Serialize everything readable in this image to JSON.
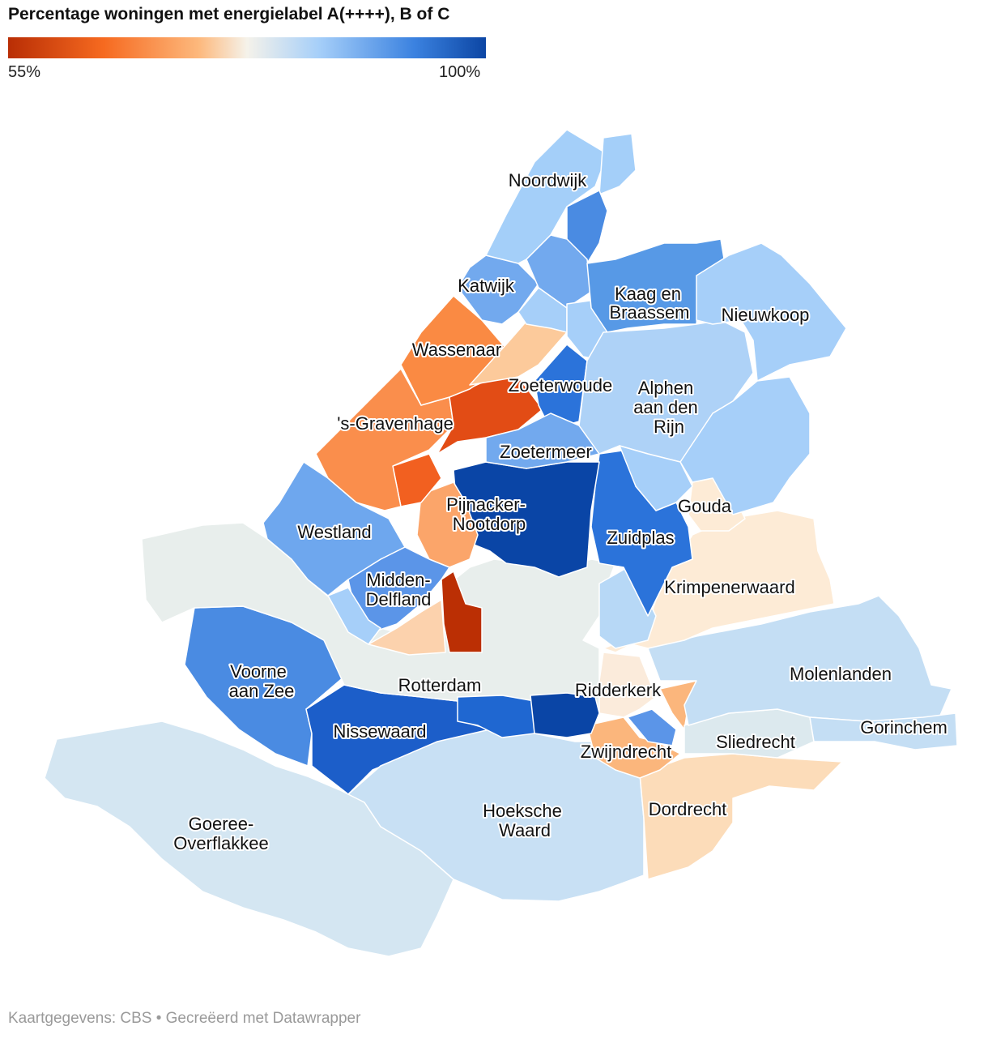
{
  "title": "Percentage woningen met energielabel A(++++), B of C",
  "legend": {
    "min_label": "55%",
    "max_label": "100%",
    "colors": [
      "#b92e05",
      "#f66a20",
      "#fdb97d",
      "#f5f2ea",
      "#a6cff9",
      "#3b82e0",
      "#0c46a4"
    ]
  },
  "footer": "Kaartgegevens: CBS • Gecreëerd met Datawrapper",
  "map": {
    "labels": {
      "noordwijk": "Noordwijk",
      "katwijk": "Katwijk",
      "kaag1": "Kaag en",
      "kaag2": "Braassem",
      "nieuwkoop": "Nieuwkoop",
      "wassenaar": "Wassenaar",
      "zoeterwoude": "Zoeterwoude",
      "alphen1": "Alphen",
      "alphen2": "aan den",
      "alphen3": "Rijn",
      "gravenhage": "'s-Gravenhage",
      "zoetermeer": "Zoetermeer",
      "pijnacker1": "Pijnacker-",
      "pijnacker2": "Nootdorp",
      "gouda": "Gouda",
      "westland": "Westland",
      "zuidplas": "Zuidplas",
      "midden1": "Midden-",
      "midden2": "Delfland",
      "krimpen": "Krimpenerwaard",
      "voorne1": "Voorne",
      "voorne2": "aan Zee",
      "rotterdam": "Rotterdam",
      "ridderkerk": "Ridderkerk",
      "molenlanden": "Molenlanden",
      "nissewaard": "Nissewaard",
      "sliedrecht": "Sliedrecht",
      "gorinchem": "Gorinchem",
      "zwijndrecht": "Zwijndrecht",
      "hoeksche1": "Hoeksche",
      "hoeksche2": "Waard",
      "dordrecht": "Dordrecht",
      "goeree1": "Goeree-",
      "goeree2": "Overflakkee"
    }
  }
}
